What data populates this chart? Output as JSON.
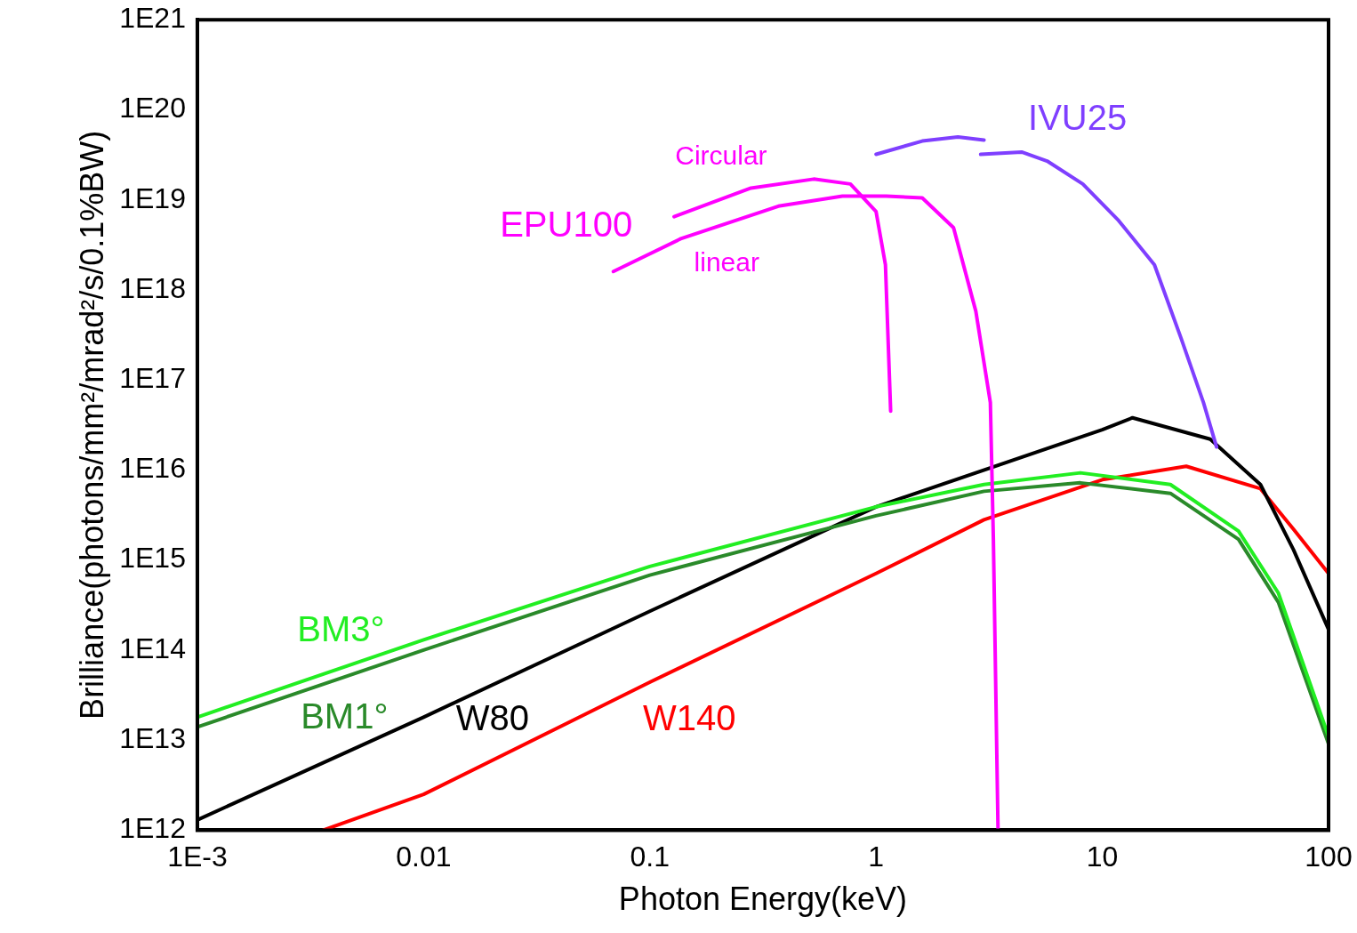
{
  "chart_data": {
    "type": "line",
    "xlabel": "Photon Energy(keV)",
    "ylabel": "Brilliance(photons/mm²/mrad²/s/0.1%BW)",
    "log": "xy",
    "grid": false,
    "legend": false,
    "marker": "none",
    "line_style": "solid",
    "xlim": [
      0.001,
      100
    ],
    "xticks": [
      {
        "value": 0.001,
        "label": "1E-3"
      },
      0.01,
      0.1,
      1,
      10,
      100
    ],
    "ylim": [
      1000000000000.0,
      1e+21
    ],
    "yticks": [
      {
        "value": 1000000000000.0,
        "label": "1E12"
      },
      {
        "value": 10000000000000.0,
        "label": "1E13"
      },
      {
        "value": 100000000000000.0,
        "label": "1E14"
      },
      {
        "value": 1000000000000000.0,
        "label": "1E15"
      },
      {
        "value": 1e+16,
        "label": "1E16"
      },
      {
        "value": 1e+17,
        "label": "1E17"
      },
      {
        "value": 1e+18,
        "label": "1E18"
      },
      {
        "value": 1e+19,
        "label": "1E19"
      },
      {
        "value": 1e+20,
        "label": "1E20"
      },
      {
        "value": 1e+21,
        "label": "1E21"
      }
    ],
    "annotations": [
      "EPU100"
    ],
    "series": [
      {
        "name": "IVU25",
        "color": "#7f3fff",
        "x": [
          1.0,
          1.6,
          2.3,
          3.0
        ],
        "values": [
          3.2e+19,
          4.5e+19,
          5e+19,
          4.6e+19
        ]
      },
      {
        "color": "#7f3fff",
        "x": [
          2.9,
          4.4,
          5.7,
          8.2,
          11.8,
          17,
          22.3,
          28,
          32
        ],
        "values": [
          3.2e+19,
          3.4e+19,
          2.7e+19,
          1.5e+19,
          5.9e+18,
          1.9e+18,
          2.9e+17,
          5.6e+16,
          1.8e+16
        ]
      },
      {
        "name": "Circular",
        "color": "#ff00ff",
        "x": [
          0.128,
          0.28,
          0.53,
          0.77,
          1.0,
          1.1,
          1.16
        ],
        "values": [
          6.5e+18,
          1.35e+19,
          1.7e+19,
          1.5e+19,
          7.4e+18,
          1.9e+18,
          4.5e+16
        ]
      },
      {
        "name": "linear",
        "color": "#ff00ff",
        "x": [
          0.069,
          0.137,
          0.37,
          0.71,
          1.11,
          1.6,
          2.2,
          2.76,
          3.2,
          3.3,
          3.46
        ],
        "values": [
          1.6e+18,
          3.7e+18,
          8.5e+18,
          1.1e+19,
          1.1e+19,
          1.05e+19,
          4.9e+18,
          5.8e+17,
          5.6e+16,
          1700000000000000.0,
          1000000000000.0
        ]
      },
      {
        "name": "BM3°",
        "color": "#22ee22",
        "x": [
          0.001,
          0.01,
          0.1,
          1,
          3,
          8,
          20,
          40,
          60,
          100
        ],
        "values": [
          18000000000000.0,
          130000000000000.0,
          850000000000000.0,
          3900000000000000.0,
          6900000000000000.0,
          9300000000000000.0,
          6900000000000000.0,
          2100000000000000.0,
          430000000000000.0,
          11000000000000.0
        ]
      },
      {
        "name": "BM1°",
        "color": "#2a8a2a",
        "x": [
          0.001,
          0.01,
          0.1,
          1,
          3,
          8,
          20,
          40,
          60,
          100
        ],
        "values": [
          14000000000000.0,
          100000000000000.0,
          680000000000000.0,
          3100000000000000.0,
          5800000000000000.0,
          7200000000000000.0,
          5500000000000000.0,
          1700000000000000.0,
          340000000000000.0,
          9100000000000.0
        ]
      },
      {
        "name": "W80",
        "color": "#000000",
        "x": [
          0.001,
          0.01,
          0.1,
          1,
          10,
          13.6,
          30,
          50,
          70,
          100
        ],
        "values": [
          1300000000000.0,
          18000000000000.0,
          270000000000000.0,
          3900000000000000.0,
          2.8e+16,
          3.8e+16,
          2.2e+16,
          6900000000000000.0,
          1300000000000000.0,
          170000000000000.0
        ]
      },
      {
        "name": "W140",
        "color": "#ff0000",
        "x": [
          0.0036,
          0.01,
          0.1,
          1,
          3,
          10,
          23.5,
          50,
          70,
          100
        ],
        "values": [
          1000000000000.0,
          2500000000000.0,
          44000000000000.0,
          710000000000000.0,
          2800000000000000.0,
          7800000000000000.0,
          1.1e+16,
          6200000000000000.0,
          2200000000000000.0,
          710000000000000.0
        ]
      }
    ]
  }
}
